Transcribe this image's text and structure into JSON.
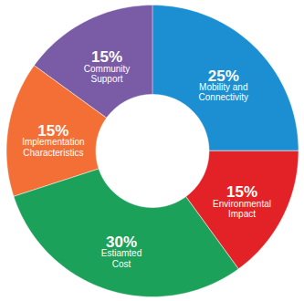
{
  "chart_data": {
    "type": "pie",
    "categories": [
      "Mobility and\nConnectivity",
      "Environmental\nImpact",
      "Estiamted\nCost",
      "Implementation\nCharacteristics",
      "Community\nSupport"
    ],
    "values": [
      25,
      15,
      30,
      15,
      15
    ],
    "value_labels": [
      "25%",
      "15%",
      "30%",
      "15%",
      "15%"
    ],
    "colors": [
      "#1b8fd2",
      "#e32228",
      "#1ba15a",
      "#f36f35",
      "#7a5ba6"
    ],
    "data_labels": true
  }
}
